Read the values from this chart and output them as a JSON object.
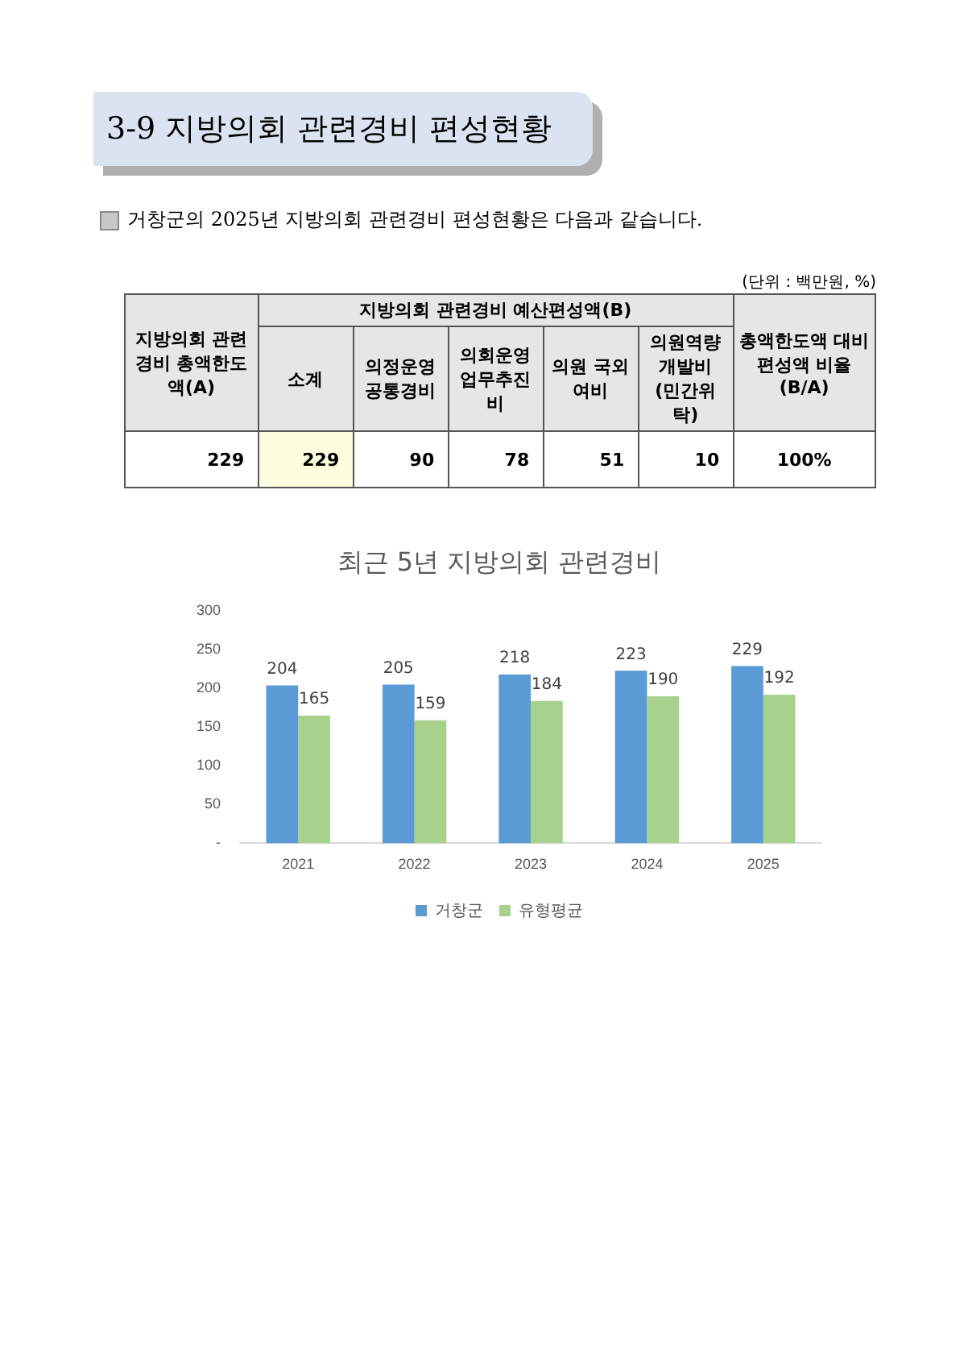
{
  "chart_data": [
    {
      "type": "other",
      "title": "3-9 지방의회 관련경비 편성현황",
      "subtitle": "거창군의 2025년 지방의회 관련경비 편성현황은 다음과 같습니다.",
      "annotations": [
        "(단위 : 백만원, %)",
        "지방의회 관련경비 총액한도액(A)",
        "지방의회 관련경비 예산편성액(B)",
        "총액한도액 대비 편성액 비율(B/A)",
        "소계",
        "의정운영 공통경비",
        "의회운영 업무추진비",
        "의원 국외여비",
        "의원역량 개발비 (민간위탁)",
        "229",
        "229",
        "90",
        "78",
        "51",
        "10",
        "100%"
      ]
    },
    {
      "type": "bar",
      "title": "최근 5년 지방의회 관련경비",
      "categories": [
        "2021",
        "2022",
        "2023",
        "2024",
        "2025"
      ],
      "series": [
        {
          "name": "거창군",
          "color": "#5b9bd5",
          "values": [
            204,
            205,
            218,
            223,
            229
          ]
        },
        {
          "name": "유형평균",
          "color": "#a9d18e",
          "values": [
            165,
            159,
            184,
            190,
            192
          ]
        }
      ],
      "ylim": [
        0,
        300
      ],
      "yticks": [
        {
          "value": 0,
          "label": "-"
        },
        50,
        100,
        150,
        200,
        250,
        300
      ],
      "grid": false,
      "legend": "bottom",
      "data_labels": true
    }
  ]
}
